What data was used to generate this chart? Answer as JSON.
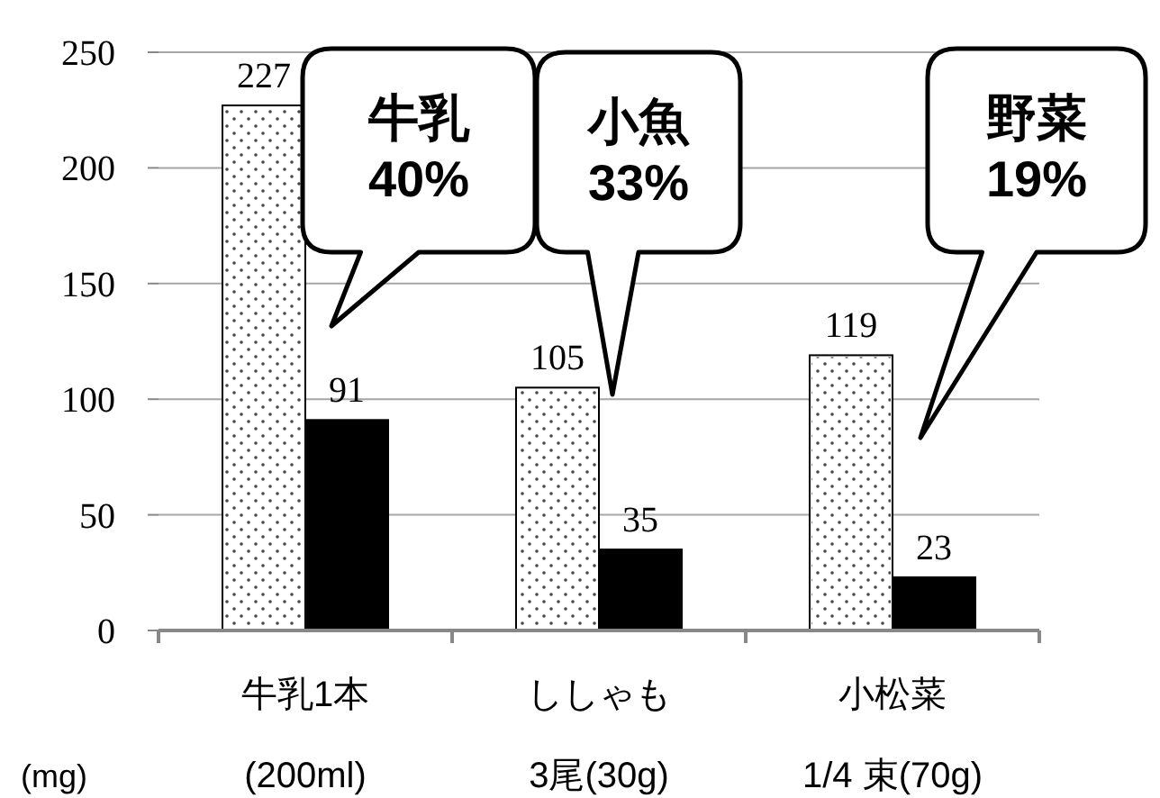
{
  "chart_data": {
    "type": "bar",
    "ylabel": "(mg)",
    "categories": [
      "牛乳1本\n(200ml)",
      "ししゃも\n3尾(30g)",
      "小松菜\n1/4 束(70g)"
    ],
    "series": [
      {
        "color": "#ffffff",
        "values": [
          227,
          105,
          119
        ]
      },
      {
        "color": "#000000",
        "values": [
          91,
          35,
          23
        ]
      }
    ],
    "ylim": [
      0,
      250
    ],
    "yticks": [
      0,
      50,
      100,
      150,
      200,
      250
    ],
    "grid": "y",
    "data_labels": true,
    "annotations": [
      "牛乳\n40%",
      "小魚\n33%",
      "野菜\n19%"
    ]
  }
}
